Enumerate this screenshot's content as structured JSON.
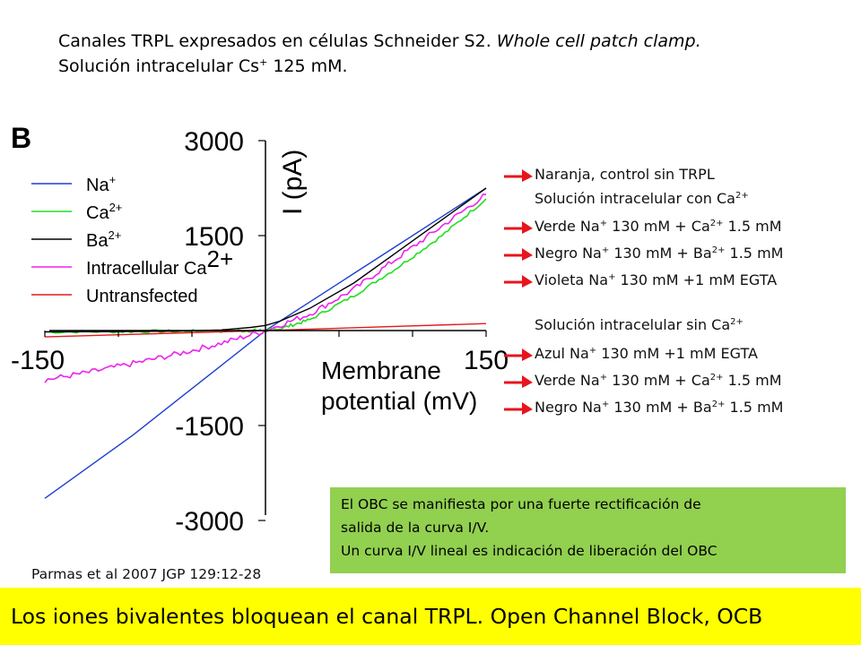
{
  "slide": {
    "title_line1_plain": "Canales TRPL expresados en células Schneider S2. ",
    "title_line1_italic": "Whole cell patch clamp.",
    "title_line2_plain": "Solución intracelular Cs",
    "title_line2_sup": "+",
    "title_line2_rest": " 125 mM.",
    "citation": "Parmas et al 2007 JGP 129:12-28",
    "banner": "Los iones bivalentes bloquean el canal TRPL. Open Channel Block, OCB",
    "green_box": [
      "El OBC se manifiesta por una fuerte rectificación de",
      "salida de la curva I/V.",
      "Un curva I/V lineal es indicación de liberación del OBC"
    ],
    "notes": [
      {
        "arrow": true,
        "parts": [
          {
            "t": "Naranja, control sin TRPL"
          }
        ]
      },
      {
        "arrow": false,
        "parts": [
          {
            "t": "Solución intracelular con Ca"
          },
          {
            "sup": "2+"
          }
        ]
      },
      {
        "arrow": true,
        "parts": [
          {
            "t": "Verde Na"
          },
          {
            "sup": "+"
          },
          {
            "t": " 130 mM + Ca"
          },
          {
            "sup": "2+"
          },
          {
            "t": " 1.5 mM"
          }
        ]
      },
      {
        "arrow": true,
        "parts": [
          {
            "t": "Negro Na"
          },
          {
            "sup": "+"
          },
          {
            "t": " 130 mM + Ba"
          },
          {
            "sup": "2+"
          },
          {
            "t": " 1.5 mM"
          }
        ]
      },
      {
        "arrow": true,
        "parts": [
          {
            "t": "Violeta Na"
          },
          {
            "sup": "+"
          },
          {
            "t": " 130 mM +1 mM EGTA"
          }
        ]
      },
      {
        "arrow": false,
        "parts": [
          {
            "t": "Solución intracelular sin Ca"
          },
          {
            "sup": "2+"
          }
        ]
      },
      {
        "arrow": true,
        "parts": [
          {
            "t": "Azul Na"
          },
          {
            "sup": "+"
          },
          {
            "t": " 130 mM +1 mM EGTA"
          }
        ]
      },
      {
        "arrow": true,
        "parts": [
          {
            "t": "Verde Na"
          },
          {
            "sup": "+"
          },
          {
            "t": " 130 mM + Ca"
          },
          {
            "sup": "2+"
          },
          {
            "t": " 1.5 mM"
          }
        ]
      },
      {
        "arrow": true,
        "parts": [
          {
            "t": "Negro Na"
          },
          {
            "sup": "+"
          },
          {
            "t": " 130 mM + Ba"
          },
          {
            "sup": "2+"
          },
          {
            "t": " 1.5 mM"
          }
        ]
      }
    ],
    "colors": {
      "green_box": "#92d050",
      "banner": "#ffff00",
      "arrow": "#e8141c"
    }
  },
  "chart_data": {
    "type": "line",
    "panel_label": "B",
    "ylabel": "I (pA)",
    "xlabel_lines": [
      "Membrane",
      "potential (mV)"
    ],
    "xlim": [
      -150,
      150
    ],
    "ylim": [
      -3000,
      3000
    ],
    "x_tick_labels": [
      "-150",
      "150"
    ],
    "y_ticks": [
      3000,
      1500,
      -1500,
      -3000
    ],
    "y_tick_labels": [
      "3000",
      "1500",
      "-1500",
      "-3000"
    ],
    "legend_position": "top-left",
    "series": [
      {
        "name": "Na",
        "name_sup": "+",
        "color": "#1f3fd0",
        "noise": 0,
        "points": [
          [
            -150,
            -2650
          ],
          [
            -120,
            -2150
          ],
          [
            -90,
            -1650
          ],
          [
            -60,
            -1100
          ],
          [
            -30,
            -550
          ],
          [
            0,
            0
          ],
          [
            30,
            450
          ],
          [
            60,
            900
          ],
          [
            90,
            1350
          ],
          [
            120,
            1800
          ],
          [
            150,
            2250
          ]
        ]
      },
      {
        "name": "Ca",
        "name_sup": "2+",
        "color": "#22dd22",
        "noise": 25,
        "points": [
          [
            -150,
            -22
          ],
          [
            -100,
            -15
          ],
          [
            -60,
            -12
          ],
          [
            -30,
            -8
          ],
          [
            -10,
            -2
          ],
          [
            0,
            0
          ],
          [
            10,
            30
          ],
          [
            30,
            170
          ],
          [
            60,
            550
          ],
          [
            90,
            1000
          ],
          [
            120,
            1500
          ],
          [
            150,
            2080
          ]
        ]
      },
      {
        "name": "Ba",
        "name_sup": "2+",
        "color": "#000000",
        "noise": 0,
        "points": [
          [
            -150,
            -20
          ],
          [
            -100,
            -15
          ],
          [
            -60,
            -10
          ],
          [
            -30,
            10
          ],
          [
            -10,
            50
          ],
          [
            0,
            80
          ],
          [
            10,
            150
          ],
          [
            30,
            350
          ],
          [
            60,
            750
          ],
          [
            90,
            1250
          ],
          [
            120,
            1750
          ],
          [
            150,
            2250
          ]
        ]
      },
      {
        "name": "Intracellular Ca",
        "name_sup": "2+",
        "color": "#ee22ee",
        "noise": 45,
        "points": [
          [
            -150,
            -780
          ],
          [
            -120,
            -660
          ],
          [
            -90,
            -520
          ],
          [
            -60,
            -370
          ],
          [
            -30,
            -200
          ],
          [
            0,
            0
          ],
          [
            30,
            260
          ],
          [
            60,
            650
          ],
          [
            90,
            1150
          ],
          [
            120,
            1650
          ],
          [
            150,
            2150
          ]
        ]
      },
      {
        "name": "Untransfected",
        "name_sup": "",
        "color": "#e41a1c",
        "noise": 0,
        "points": [
          [
            -150,
            -100
          ],
          [
            -75,
            -50
          ],
          [
            0,
            0
          ],
          [
            75,
            55
          ],
          [
            150,
            110
          ]
        ]
      }
    ]
  }
}
